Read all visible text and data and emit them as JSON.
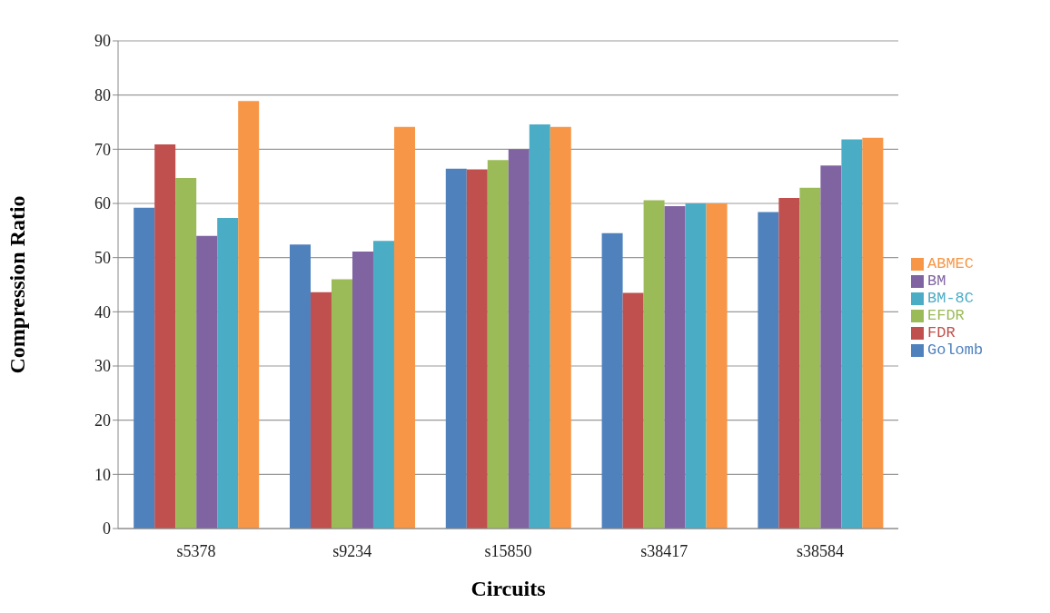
{
  "chart_data": {
    "type": "bar",
    "xlabel": "Circuits",
    "ylabel": "Compression Ratio",
    "categories": [
      "s5378",
      "s9234",
      "s15850",
      "s38417",
      "s38584"
    ],
    "series": [
      {
        "name": "Golomb",
        "color": "#4f81bd",
        "values": [
          59.2,
          52.4,
          66.4,
          54.5,
          58.4
        ]
      },
      {
        "name": "FDR",
        "color": "#c0504d",
        "values": [
          70.9,
          43.6,
          66.3,
          43.5,
          61.0
        ]
      },
      {
        "name": "EFDR",
        "color": "#9bbb59",
        "values": [
          64.7,
          46.0,
          68.0,
          60.6,
          62.9
        ]
      },
      {
        "name": "BM",
        "color": "#8064a2",
        "values": [
          54.0,
          51.1,
          70.0,
          59.5,
          67.0
        ]
      },
      {
        "name": "BM-8C",
        "color": "#4bacc6",
        "values": [
          57.3,
          53.1,
          74.6,
          60.0,
          71.8
        ]
      },
      {
        "name": "ABMEC",
        "color": "#f79646",
        "values": [
          78.9,
          74.1,
          74.1,
          60.0,
          72.1
        ]
      }
    ],
    "ylim": [
      0,
      90
    ],
    "yticks": [
      0,
      10,
      20,
      30,
      40,
      50,
      60,
      70,
      80,
      90
    ],
    "grid": "y",
    "legend": "right"
  }
}
